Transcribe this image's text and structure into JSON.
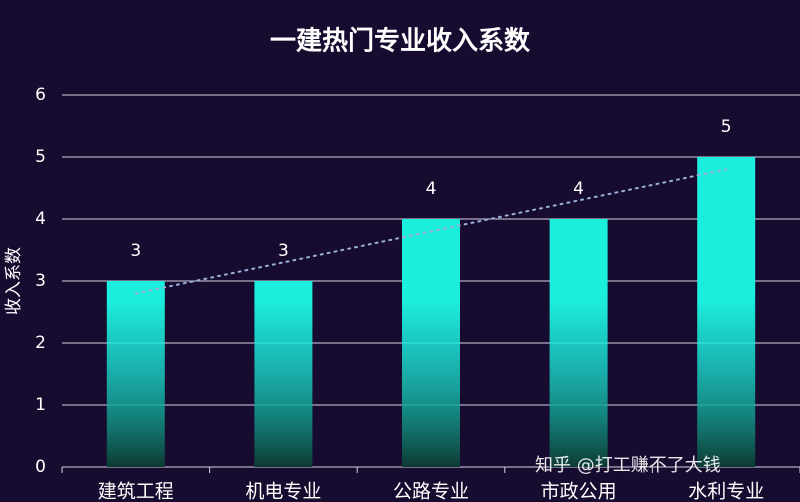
{
  "chart_data": {
    "type": "bar",
    "title": "一建热门专业收入系数",
    "y_label": "收入系数",
    "categories": [
      "建筑工程",
      "机电专业",
      "公路专业",
      "市政公用",
      "水利专业"
    ],
    "values": [
      3,
      3,
      4,
      4,
      5
    ],
    "color": "#1ceedd",
    "ylim": [
      0,
      6
    ],
    "yticks": [
      0,
      1,
      2,
      3,
      4,
      5,
      6
    ],
    "grid": true,
    "trendline": true,
    "watermark": "知乎 @打工赚不了大钱"
  }
}
